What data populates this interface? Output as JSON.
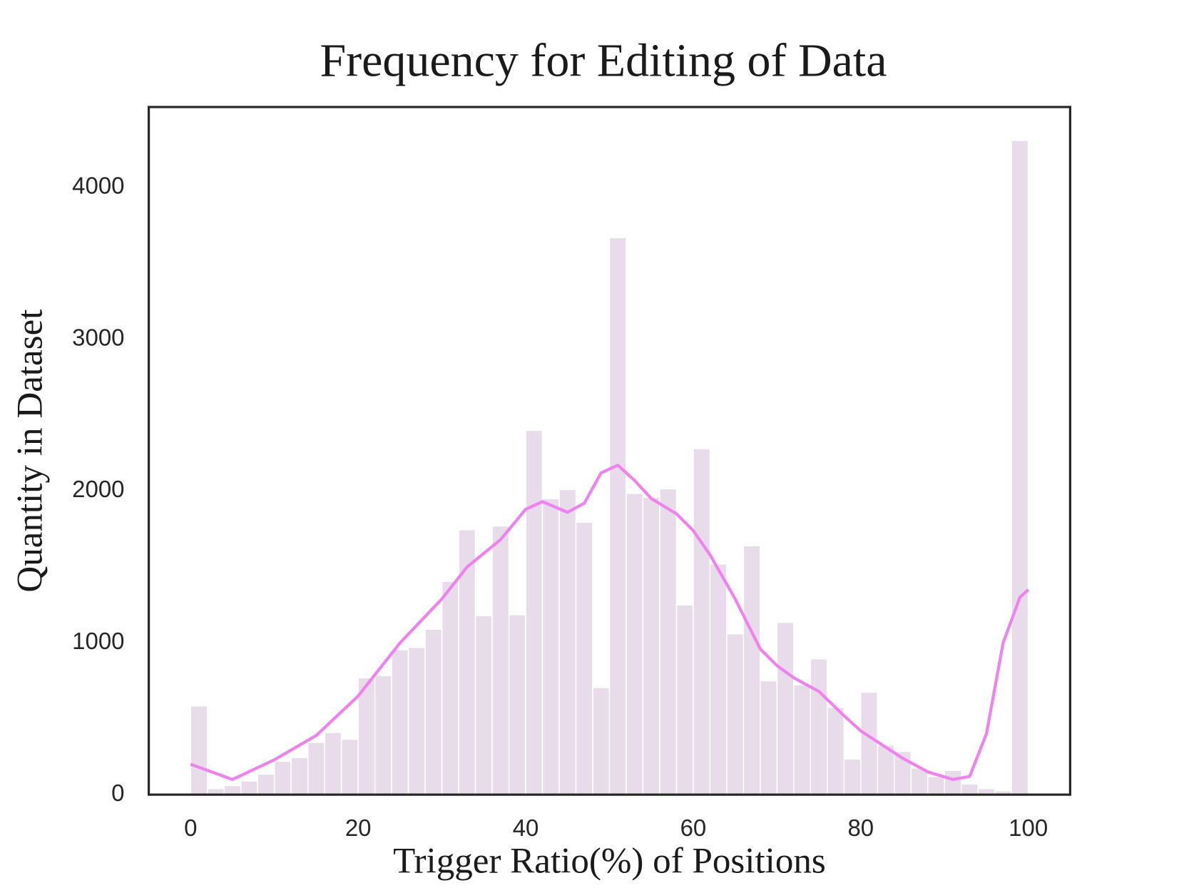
{
  "chart_data": {
    "type": "histogram",
    "title": "Frequency for Editing of Data",
    "x_label": "Trigger Ratio(%) of Positions",
    "y_label": "Quantity in Dataset",
    "bins": [
      0,
      2,
      4,
      6,
      8,
      10,
      12,
      14,
      16,
      18,
      20,
      22,
      24,
      26,
      28,
      30,
      32,
      34,
      36,
      38,
      40,
      42,
      44,
      46,
      48,
      50,
      52,
      54,
      56,
      58,
      60,
      62,
      64,
      66,
      68,
      70,
      72,
      74,
      76,
      78,
      80,
      82,
      84,
      86,
      88,
      90,
      92,
      94,
      96,
      98,
      100
    ],
    "counts": [
      585,
      40,
      60,
      90,
      135,
      220,
      245,
      345,
      410,
      365,
      770,
      785,
      955,
      970,
      1090,
      1405,
      1745,
      1180,
      1770,
      1185,
      2400,
      1950,
      2010,
      1795,
      705,
      3670,
      1985,
      1960,
      2015,
      1250,
      2280,
      1520,
      1060,
      1640,
      750,
      1135,
      725,
      895,
      575,
      235,
      675,
      325,
      285,
      175,
      120,
      160,
      70,
      40,
      25,
      4310
    ],
    "color": "#e8dcea",
    "kde": {
      "color": "#ee82ee",
      "x": [
        0,
        5,
        10,
        15,
        20,
        25,
        30,
        33,
        37,
        40,
        42,
        45,
        47,
        49,
        51,
        53,
        55,
        58,
        60,
        62,
        65,
        68,
        70,
        72,
        75,
        78,
        80,
        85,
        88,
        91,
        93,
        95,
        97,
        99,
        100
      ],
      "values": [
        200,
        100,
        230,
        390,
        650,
        1000,
        1290,
        1500,
        1680,
        1880,
        1930,
        1860,
        1920,
        2120,
        2170,
        2070,
        1950,
        1850,
        1740,
        1580,
        1290,
        960,
        850,
        770,
        680,
        520,
        420,
        240,
        150,
        100,
        120,
        400,
        1000,
        1300,
        1350
      ]
    },
    "xlim": [
      -5,
      105
    ],
    "xticks": [
      0,
      20,
      40,
      60,
      80,
      100
    ],
    "ylim": [
      0,
      4530
    ],
    "yticks": [
      0,
      1000,
      2000,
      3000,
      4000
    ]
  }
}
